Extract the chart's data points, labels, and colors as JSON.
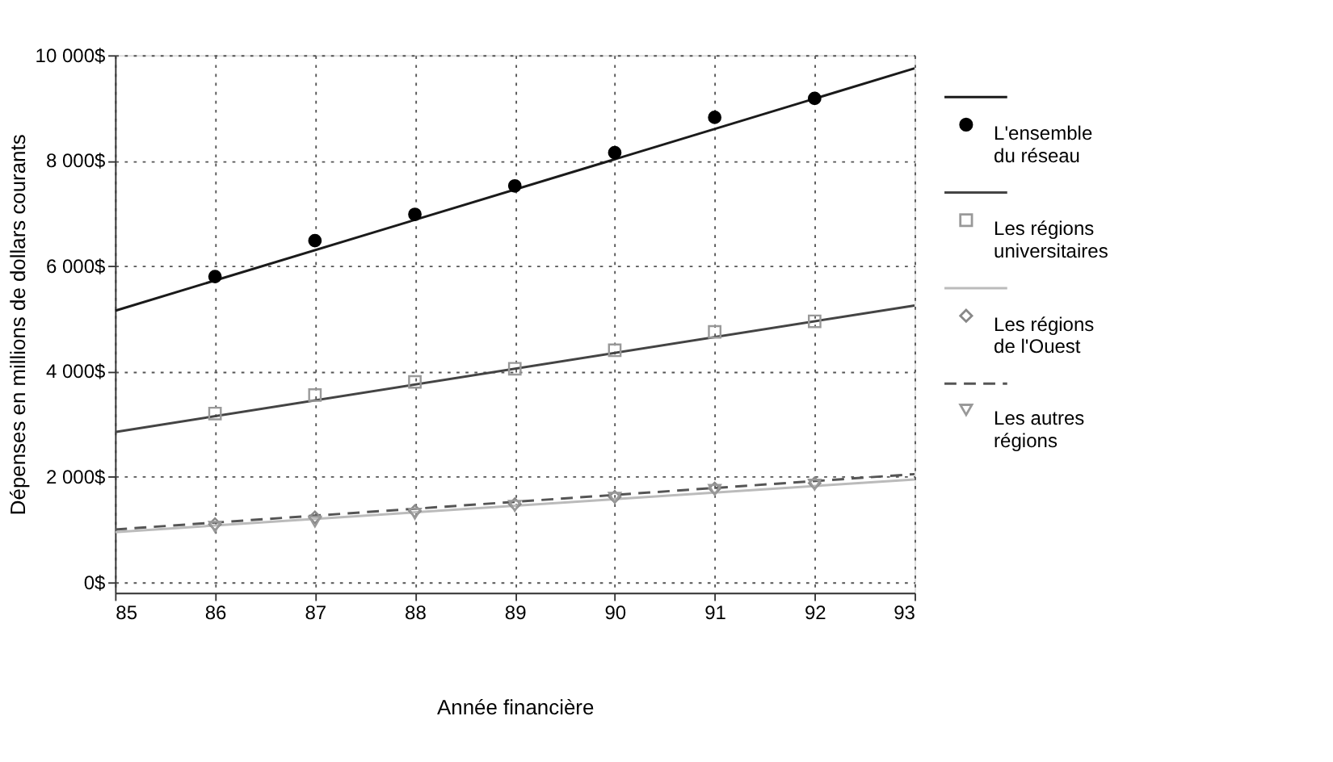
{
  "chart_data": {
    "type": "scatter",
    "xlabel": "Année financière",
    "ylabel": "Dépenses en millions de dollars courants",
    "xlim": [
      85,
      93
    ],
    "xticks": [
      85,
      86,
      87,
      88,
      89,
      90,
      91,
      92,
      93
    ],
    "ylim": [
      -200,
      10000
    ],
    "yticks": [
      {
        "value": 0,
        "label": "0$"
      },
      {
        "value": 2000,
        "label": "2 000$"
      },
      {
        "value": 4000,
        "label": "4 000$"
      },
      {
        "value": 6000,
        "label": "6 000$"
      },
      {
        "value": 8000,
        "label": "8 000$"
      },
      {
        "value": 10000,
        "label": "10 000$"
      }
    ],
    "grid": true,
    "legend": "right",
    "series": [
      {
        "type": "line",
        "color": "#1a1a1a",
        "line_style": "solid",
        "x": [
          85,
          93
        ],
        "values": [
          5150,
          9750
        ]
      },
      {
        "name": "L'ensemble du réseau",
        "color": "#000000",
        "marker": "circle",
        "x": [
          86,
          87,
          88,
          89,
          90,
          91,
          92
        ],
        "values": [
          5800,
          6480,
          6980,
          7520,
          8150,
          8820,
          9180
        ]
      },
      {
        "type": "line",
        "color": "#444444",
        "line_style": "solid",
        "x": [
          85,
          93
        ],
        "values": [
          2850,
          5250
        ]
      },
      {
        "name": "Les régions universitaires",
        "color": "#999999",
        "marker": "square",
        "x": [
          86,
          87,
          88,
          89,
          90,
          91,
          92
        ],
        "values": [
          3200,
          3550,
          3800,
          4050,
          4400,
          4750,
          4950
        ]
      },
      {
        "type": "line",
        "color": "#bbbbbb",
        "line_style": "solid",
        "x": [
          85,
          93
        ],
        "values": [
          950,
          1950
        ]
      },
      {
        "name": "Les régions de l'Ouest",
        "color": "#888888",
        "marker": "diamond",
        "x": [
          86,
          87,
          88,
          89,
          90,
          91,
          92
        ],
        "values": [
          1100,
          1230,
          1350,
          1480,
          1620,
          1780,
          1880
        ]
      },
      {
        "type": "line",
        "color": "#555555",
        "line_style": "dashed",
        "x": [
          85,
          93
        ],
        "values": [
          1000,
          2050
        ]
      },
      {
        "name": "Les autres régions",
        "color": "#999999",
        "marker": "triangle",
        "x": [
          86,
          87,
          88,
          89,
          90,
          91,
          92
        ],
        "values": [
          1050,
          1150,
          1300,
          1450,
          1600,
          1750,
          1850
        ]
      }
    ]
  }
}
